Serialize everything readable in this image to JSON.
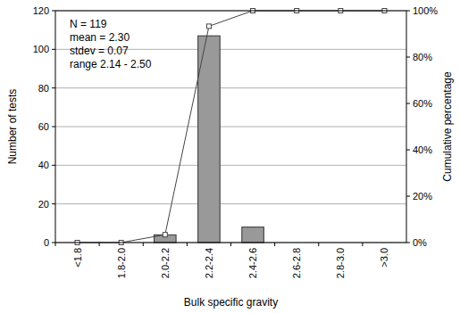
{
  "chart_data": {
    "type": "bar",
    "x_label": "Bulk specific gravity",
    "y_label": "Number of tests",
    "y2_label": "Cumulative percentage",
    "annotations": [
      "N = 119",
      "mean = 2.30",
      "stdev = 0.07",
      "range 2.14 - 2.50"
    ],
    "categories": [
      "<1.8",
      "1.8-2.0",
      "2.0-2.2",
      "2.2-2.4",
      "2.4-2.6",
      "2.6-2.8",
      "2.8-3.0",
      ">3.0"
    ],
    "series": [
      {
        "type": "bar",
        "color": "#999999",
        "values": [
          0,
          0,
          4,
          107,
          8,
          0,
          0,
          0
        ]
      },
      {
        "type": "line",
        "axis": "y2",
        "color": "#444444",
        "marker": "square",
        "line_style": "solid",
        "values": [
          0,
          0,
          3.4,
          93.3,
          100,
          100,
          100,
          100
        ]
      }
    ],
    "ylim": [
      0,
      120
    ],
    "yticks": [
      0,
      20,
      40,
      60,
      80,
      100,
      120
    ],
    "y2lim": [
      0,
      100
    ],
    "y2ticks": [
      {
        "value": 0,
        "label": "0%"
      },
      {
        "value": 20,
        "label": "20%"
      },
      {
        "value": 40,
        "label": "40%"
      },
      {
        "value": 60,
        "label": "60%"
      },
      {
        "value": 80,
        "label": "80%"
      },
      {
        "value": 100,
        "label": "100%"
      }
    ],
    "grid": true
  }
}
